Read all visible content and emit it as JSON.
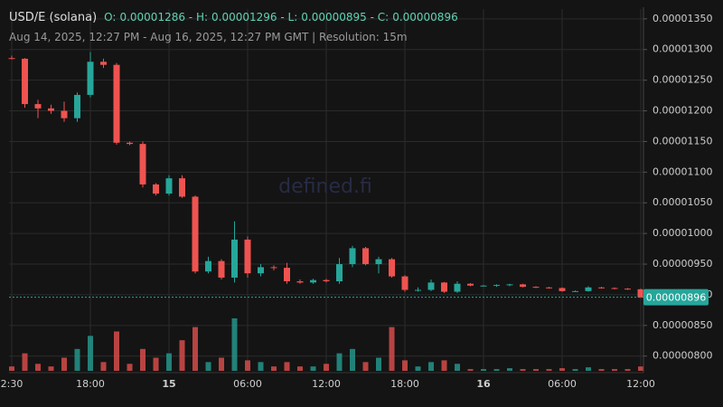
{
  "chart_data": {
    "type": "candlestick",
    "title": "USD/E (solana)",
    "ohlc": [
      {
        "label": "O:",
        "value": 1.286e-05
      },
      {
        "label": "H:",
        "value": 1.296e-05
      },
      {
        "label": "L:",
        "value": 8.95e-06
      },
      {
        "label": "C:",
        "value": 8.96e-06
      }
    ],
    "subtitle": "Aug 14, 2025, 12:27 PM - Aug 16, 2025, 12:27 PM GMT",
    "resolution": "Resolution: 15m",
    "watermark": "defined.fi",
    "categories": [
      "2:30",
      null,
      null,
      null,
      null,
      null,
      "18:00",
      null,
      null,
      null,
      null,
      null,
      "15",
      null,
      null,
      null,
      null,
      null,
      "06:00",
      null,
      null,
      null,
      null,
      null,
      "12:00",
      null,
      null,
      null,
      null,
      null,
      "18:00",
      null,
      null,
      null,
      null,
      null,
      "16",
      null,
      null,
      null,
      null,
      null,
      "06:00",
      null,
      null,
      null,
      null,
      null,
      "12:00"
    ],
    "open": [
      1.286e-05,
      1.285e-05,
      1.211e-05,
      1.204e-05,
      1.2e-05,
      1.188e-05,
      1.226e-05,
      1.28e-05,
      1.275e-05,
      1.148e-05,
      1.146e-05,
      1.08e-05,
      1.065e-05,
      1.09e-05,
      1.06e-05,
      9.38e-06,
      9.55e-06,
      9.28e-06,
      9.9e-06,
      9.35e-06,
      9.45e-06,
      9.44e-06,
      9.22e-06,
      9.2e-06,
      9.24e-06,
      9.22e-06,
      9.5e-06,
      9.76e-06,
      9.5e-06,
      9.58e-06,
      9.3e-06,
      9.08e-06,
      9.08e-06,
      9.2e-06,
      9.05e-06,
      9.18e-06,
      9.15e-06,
      9.15e-06,
      9.16e-06,
      9.17e-06,
      9.13e-06,
      9.12e-06,
      9.11e-06,
      9.06e-06,
      9.06e-06,
      9.12e-06,
      9.11e-06,
      9.1e-06,
      9.09e-06
    ],
    "high": [
      1.29e-05,
      1.286e-05,
      1.218e-05,
      1.21e-05,
      1.215e-05,
      1.23e-05,
      1.296e-05,
      1.285e-05,
      1.278e-05,
      1.15e-05,
      1.15e-05,
      1.082e-05,
      1.095e-05,
      1.095e-05,
      1.062e-05,
      9.62e-06,
      9.58e-06,
      1.02e-05,
      9.95e-06,
      9.5e-06,
      9.48e-06,
      9.52e-06,
      9.25e-06,
      9.26e-06,
      9.26e-06,
      9.6e-06,
      9.8e-06,
      9.78e-06,
      9.62e-06,
      9.6e-06,
      9.32e-06,
      9.12e-06,
      9.25e-06,
      9.21e-06,
      9.22e-06,
      9.19e-06,
      9.16e-06,
      9.17e-06,
      9.18e-06,
      9.18e-06,
      9.14e-06,
      9.13e-06,
      9.12e-06,
      9.07e-06,
      9.14e-06,
      9.13e-06,
      9.12e-06,
      9.11e-06,
      9.1e-06
    ],
    "low": [
      1.284e-05,
      1.205e-05,
      1.188e-05,
      1.195e-05,
      1.182e-05,
      1.182e-05,
      1.222e-05,
      1.27e-05,
      1.145e-05,
      1.144e-05,
      1.075e-05,
      1.062e-05,
      1.062e-05,
      1.058e-05,
      9.35e-06,
      9.35e-06,
      9.25e-06,
      9.2e-06,
      9.28e-06,
      9.3e-06,
      9.4e-06,
      9.18e-06,
      9.18e-06,
      9.18e-06,
      9.2e-06,
      9.18e-06,
      9.45e-06,
      9.48e-06,
      9.35e-06,
      9.28e-06,
      9.05e-06,
      9.05e-06,
      9.06e-06,
      9.03e-06,
      9.03e-06,
      9.14e-06,
      9.14e-06,
      9.13e-06,
      9.14e-06,
      9.12e-06,
      9.11e-06,
      9.1e-06,
      9.05e-06,
      9.05e-06,
      9.05e-06,
      9.1e-06,
      9.09e-06,
      9.08e-06,
      8.95e-06
    ],
    "close": [
      1.285e-05,
      1.211e-05,
      1.204e-05,
      1.2e-05,
      1.188e-05,
      1.226e-05,
      1.28e-05,
      1.275e-05,
      1.148e-05,
      1.146e-05,
      1.08e-05,
      1.065e-05,
      1.09e-05,
      1.06e-05,
      9.38e-06,
      9.55e-06,
      9.28e-06,
      9.9e-06,
      9.35e-06,
      9.45e-06,
      9.44e-06,
      9.22e-06,
      9.2e-06,
      9.24e-06,
      9.22e-06,
      9.5e-06,
      9.76e-06,
      9.5e-06,
      9.58e-06,
      9.3e-06,
      9.08e-06,
      9.08e-06,
      9.2e-06,
      9.05e-06,
      9.18e-06,
      9.15e-06,
      9.15e-06,
      9.16e-06,
      9.17e-06,
      9.13e-06,
      9.12e-06,
      9.11e-06,
      9.06e-06,
      9.06e-06,
      9.12e-06,
      9.11e-06,
      9.1e-06,
      9.09e-06,
      8.96e-06
    ],
    "volume": [
      5,
      20,
      8,
      5,
      15,
      25,
      40,
      10,
      45,
      8,
      25,
      15,
      20,
      35,
      50,
      10,
      15,
      60,
      12,
      10,
      5,
      10,
      5,
      5,
      8,
      20,
      25,
      10,
      15,
      50,
      12,
      5,
      10,
      12,
      8,
      2,
      2,
      2,
      3,
      2,
      2,
      2,
      3,
      2,
      4,
      2,
      2,
      2,
      5
    ],
    "ylim": [
      7.76e-06,
      1.366e-05
    ],
    "yticks": [
      {
        "value": 1.35e-05,
        "label": "0.00001350"
      },
      {
        "value": 1.3e-05,
        "label": "0.00001300"
      },
      {
        "value": 1.25e-05,
        "label": "0.00001250"
      },
      {
        "value": 1.2e-05,
        "label": "0.00001200"
      },
      {
        "value": 1.15e-05,
        "label": "0.00001150"
      },
      {
        "value": 1.1e-05,
        "label": "0.00001100"
      },
      {
        "value": 1.05e-05,
        "label": "0.00001050"
      },
      {
        "value": 1e-05,
        "label": "0.00001000"
      },
      {
        "value": 9.5e-06,
        "label": "0.00000950"
      },
      {
        "value": 9e-06,
        "label": "0.00000900"
      },
      {
        "value": 8.5e-06,
        "label": "0.00000850"
      },
      {
        "value": 8e-06,
        "label": "0.00000800"
      }
    ],
    "last_price": 8.96e-06,
    "colors": {
      "up": "#26a69a",
      "down": "#ef5350",
      "last": "#26a69a"
    },
    "grid": true
  }
}
